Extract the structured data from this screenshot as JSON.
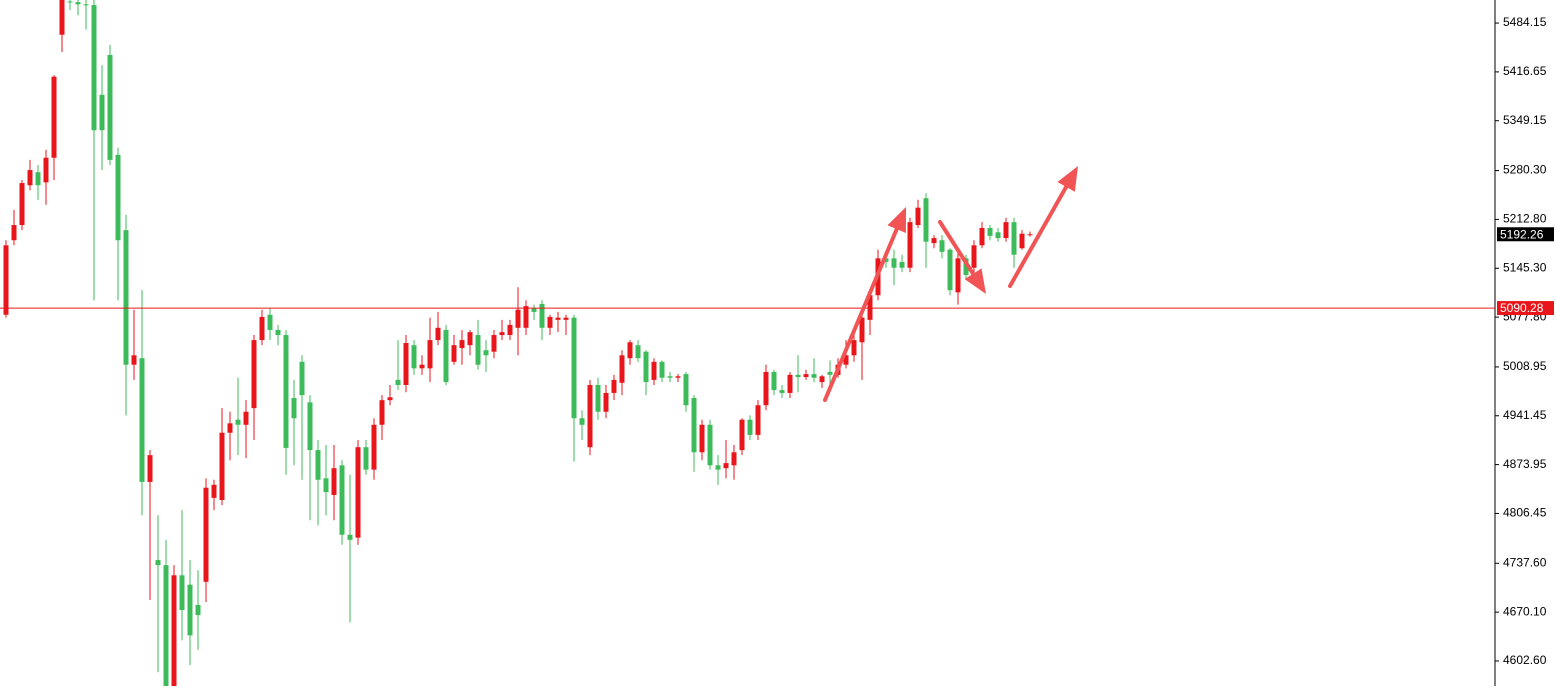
{
  "chart_data": {
    "type": "candlestick",
    "up_color": "#e8161b",
    "down_color": "#3dbb5a",
    "ylim": [
      4568,
      5516
    ],
    "yticks": [
      5484.15,
      5416.65,
      5349.15,
      {
        "value": 5280.3,
        "label": "5280.30"
      },
      {
        "value": 5212.8,
        "label": "5212.80"
      },
      {
        "value": 5145.3,
        "label": "5145.30"
      },
      {
        "value": 5077.8,
        "label": "5077.80"
      },
      5008.95,
      4941.45,
      4873.95,
      4806.45,
      {
        "value": 4737.6,
        "label": "4737.60"
      },
      {
        "value": 4670.1,
        "label": "4670.10"
      },
      {
        "value": 4602.6,
        "label": "4602.60"
      }
    ],
    "last_price": 5192.26,
    "level_line": 5090.28,
    "level_color": "#e8161b",
    "open": [
      5081,
      5184,
      5205,
      5260,
      5278,
      5264,
      5298,
      5468,
      5514,
      5513,
      5510,
      5509,
      5385,
      5440,
      5302,
      5198,
      5012,
      5021,
      4850,
      4742,
      4735,
      4568,
      4721,
      4708,
      4680,
      4712,
      4828,
      4825,
      4918,
      4936,
      4929,
      4952,
      5046,
      5081,
      5060,
      5053,
      4966,
      5016,
      4960,
      4894,
      4855,
      4832,
      4873,
      4777,
      4773,
      4898,
      4867,
      4929,
      4963,
      4991,
      4984,
      5039,
      5007,
      5007,
      5046,
      5060,
      5016,
      5035,
      5039,
      5053,
      5032,
      5030,
      5053,
      5053,
      5063,
      5063,
      5090,
      5096,
      5063,
      5074,
      5074,
      5077,
      4938,
      4898,
      4984,
      4947,
      4973,
      4987,
      5021,
      5039,
      5030,
      4991,
      5016,
      4996,
      4994,
      4999,
      4966,
      4891,
      4929,
      4873,
      4869,
      4873,
      4894,
      4936,
      4915,
      4956,
      5002,
      4977,
      4973,
      4998,
      4995,
      4999,
      4988,
      5002,
      4998,
      5012,
      5025,
      5043,
      5074,
      5108,
      5159,
      5159,
      5154,
      5146,
      5205,
      5242,
      5180,
      5184,
      5171,
      5112,
      5159,
      5146,
      5177,
      5201,
      5195,
      5187,
      5209,
      5173,
      5191
    ],
    "high": [
      5184,
      5226,
      5267,
      5295,
      5288,
      5309,
      5412,
      5516,
      5516,
      5516,
      5516,
      5516,
      5426,
      5454,
      5312,
      5219,
      5088,
      5115,
      4894,
      4804,
      4770,
      4735,
      4811,
      4742,
      4728,
      4855,
      4853,
      4952,
      4947,
      4994,
      4963,
      5053,
      5088,
      5090,
      5067,
      5060,
      4991,
      5025,
      4970,
      4908,
      4901,
      4901,
      4880,
      4860,
      4908,
      4908,
      4938,
      4970,
      4984,
      5046,
      5053,
      5046,
      5025,
      5077,
      5085,
      5067,
      5053,
      5060,
      5060,
      5074,
      5046,
      5060,
      5074,
      5074,
      5119,
      5101,
      5095,
      5101,
      5081,
      5085,
      5081,
      5081,
      4949,
      4991,
      4994,
      4984,
      4998,
      5032,
      5046,
      5046,
      5032,
      5021,
      5018,
      5002,
      4999,
      5002,
      4970,
      4936,
      4936,
      4887,
      4908,
      4901,
      4938,
      4942,
      4963,
      5012,
      5005,
      4984,
      5002,
      5025,
      5005,
      5021,
      4998,
      5018,
      5021,
      5046,
      5053,
      5085,
      5115,
      5171,
      5164,
      5171,
      5164,
      5215,
      5240,
      5249,
      5191,
      5191,
      5173,
      5171,
      5164,
      5184,
      5209,
      5205,
      5201,
      5215,
      5215,
      5198,
      5196
    ],
    "low": [
      5077,
      5177,
      5198,
      5253,
      5240,
      5233,
      5267,
      5444,
      5502,
      5495,
      5475,
      5101,
      5281,
      5288,
      5101,
      4942,
      4991,
      4804,
      4687,
      4587,
      4568,
      4568,
      4631,
      4597,
      4618,
      4684,
      4811,
      4818,
      4880,
      4887,
      4883,
      4908,
      5039,
      5046,
      5039,
      4860,
      4873,
      4853,
      4797,
      4790,
      4804,
      4797,
      4763,
      4656,
      4763,
      4860,
      4853,
      4908,
      4956,
      4977,
      4974,
      4998,
      4998,
      4988,
      5039,
      4984,
      5012,
      5012,
      5025,
      5005,
      5002,
      5021,
      5046,
      5046,
      5025,
      5053,
      5074,
      5046,
      5053,
      5057,
      5053,
      4878,
      4908,
      4887,
      4936,
      4938,
      4963,
      4970,
      5012,
      5016,
      4970,
      4984,
      4988,
      4988,
      4988,
      4947,
      4864,
      4880,
      4867,
      4846,
      4855,
      4853,
      4887,
      4908,
      4908,
      4949,
      4970,
      4966,
      4966,
      4974,
      4991,
      4988,
      4980,
      4984,
      4994,
      5007,
      5016,
      4991,
      5053,
      5101,
      5146,
      5122,
      5140,
      5140,
      5201,
      5146,
      5173,
      5159,
      5108,
      5095,
      5129,
      5140,
      5173,
      5184,
      5182,
      5182,
      5146,
      5171,
      5189
    ],
    "close": [
      5177,
      5205,
      5263,
      5281,
      5260,
      5298,
      5410,
      5516,
      5513,
      5510,
      5509,
      5336,
      5336,
      5295,
      5184,
      5012,
      5025,
      4850,
      4887,
      4735,
      4568,
      4721,
      4673,
      4638,
      4666,
      4842,
      4846,
      4918,
      4931,
      4929,
      4947,
      5046,
      5078,
      5060,
      5053,
      4897,
      4938,
      4970,
      4894,
      4853,
      4836,
      4869,
      4777,
      4770,
      4898,
      4867,
      4929,
      4963,
      4967,
      4984,
      5042,
      5007,
      5012,
      5046,
      5063,
      4988,
      5039,
      5046,
      5057,
      5012,
      5025,
      5053,
      5057,
      5067,
      5088,
      5093,
      5085,
      5063,
      5078,
      5077,
      5077,
      4938,
      4929,
      4984,
      4947,
      4973,
      4991,
      5025,
      5043,
      5021,
      4988,
      5016,
      4994,
      4994,
      4996,
      4956,
      4891,
      4929,
      4873,
      4867,
      4876,
      4891,
      4936,
      4915,
      4956,
      5002,
      4977,
      4973,
      4998,
      4995,
      4999,
      4994,
      4996,
      4998,
      5012,
      5025,
      5046,
      5077,
      5108,
      5159,
      5154,
      5146,
      5146,
      5209,
      5229,
      5182,
      5187,
      5168,
      5115,
      5159,
      5136,
      5177,
      5201,
      5190,
      5187,
      5209,
      5164,
      5193,
      5192.26
    ]
  }
}
